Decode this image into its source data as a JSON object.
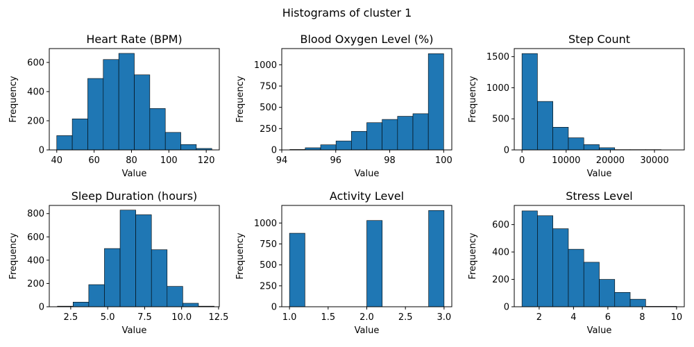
{
  "figure_title": "Histograms of cluster 1",
  "chart_data": [
    {
      "type": "bar",
      "histogram": true,
      "title": "Heart Rate (BPM)",
      "xlabel": "Value",
      "ylabel": "Frequency",
      "xlim": [
        36,
        127
      ],
      "ylim": [
        0,
        695
      ],
      "xticks": [
        40,
        60,
        80,
        100,
        120
      ],
      "yticks": [
        0,
        200,
        400,
        600
      ],
      "bin_edges": [
        40,
        48.3,
        56.6,
        64.9,
        73.2,
        81.5,
        89.8,
        98.1,
        106.4,
        114.7,
        123
      ],
      "values": [
        98,
        213,
        490,
        620,
        662,
        515,
        284,
        120,
        37,
        10
      ]
    },
    {
      "type": "bar",
      "histogram": true,
      "title": "Blood Oxygen Level (%)",
      "xlabel": "Value",
      "ylabel": "Frequency",
      "xlim": [
        94.0,
        100.3
      ],
      "ylim": [
        0,
        1190
      ],
      "xticks": [
        94,
        96,
        98,
        100
      ],
      "yticks": [
        0,
        250,
        500,
        750,
        1000
      ],
      "bin_edges": [
        94.3,
        94.87,
        95.44,
        96.01,
        96.58,
        97.15,
        97.72,
        98.29,
        98.86,
        99.43,
        100
      ],
      "values": [
        5,
        25,
        60,
        105,
        218,
        320,
        358,
        395,
        425,
        1130
      ]
    },
    {
      "type": "bar",
      "histogram": true,
      "title": "Step Count",
      "xlabel": "Value",
      "ylabel": "Frequency",
      "xlim": [
        -1750,
        36750
      ],
      "ylim": [
        0,
        1630
      ],
      "xticks": [
        0,
        10000,
        20000,
        30000
      ],
      "yticks": [
        0,
        500,
        1000,
        1500
      ],
      "bin_edges": [
        0,
        3500,
        7000,
        10500,
        14000,
        17500,
        21000,
        24500,
        28000,
        31500,
        35000
      ],
      "values": [
        1550,
        780,
        365,
        195,
        85,
        35,
        5,
        5,
        5,
        2
      ]
    },
    {
      "type": "bar",
      "histogram": true,
      "title": "Sleep Duration (hours)",
      "xlabel": "Value",
      "ylabel": "Frequency",
      "xlim": [
        1.05,
        12.55
      ],
      "ylim": [
        0,
        870
      ],
      "xticks": [
        2.5,
        5.0,
        7.5,
        10.0,
        12.5
      ],
      "xtick_labels": [
        "2.5",
        "5.0",
        "7.5",
        "10.0",
        "12.5"
      ],
      "yticks": [
        0,
        200,
        400,
        600,
        800
      ],
      "bin_edges": [
        1.6,
        2.66,
        3.72,
        4.78,
        5.84,
        6.9,
        7.96,
        9.02,
        10.08,
        11.14,
        12.2
      ],
      "values": [
        5,
        40,
        190,
        500,
        830,
        790,
        490,
        175,
        30,
        5
      ]
    },
    {
      "type": "bar",
      "histogram": true,
      "title": "Activity Level",
      "xlabel": "Value",
      "ylabel": "Frequency",
      "xlim": [
        0.9,
        3.1
      ],
      "ylim": [
        0,
        1210
      ],
      "xticks": [
        1.0,
        1.5,
        2.0,
        2.5,
        3.0
      ],
      "xtick_labels": [
        "1.0",
        "1.5",
        "2.0",
        "2.5",
        "3.0"
      ],
      "yticks": [
        0,
        250,
        500,
        750,
        1000
      ],
      "bin_edges": [
        1.0,
        1.2,
        1.4,
        1.6,
        1.8,
        2.0,
        2.2,
        2.4,
        2.6,
        2.8,
        3.0
      ],
      "values": [
        878,
        0,
        0,
        0,
        0,
        1030,
        0,
        0,
        0,
        1150
      ]
    },
    {
      "type": "bar",
      "histogram": true,
      "title": "Stress Level",
      "xlabel": "Value",
      "ylabel": "Frequency",
      "xlim": [
        0.55,
        10.45
      ],
      "ylim": [
        0,
        740
      ],
      "xticks": [
        2,
        4,
        6,
        8,
        10
      ],
      "yticks": [
        0,
        200,
        400,
        600
      ],
      "bin_edges": [
        1,
        1.9,
        2.8,
        3.7,
        4.6,
        5.5,
        6.4,
        7.3,
        8.2,
        9.1,
        10
      ],
      "values": [
        700,
        665,
        570,
        420,
        325,
        200,
        105,
        55,
        3,
        3
      ]
    }
  ]
}
